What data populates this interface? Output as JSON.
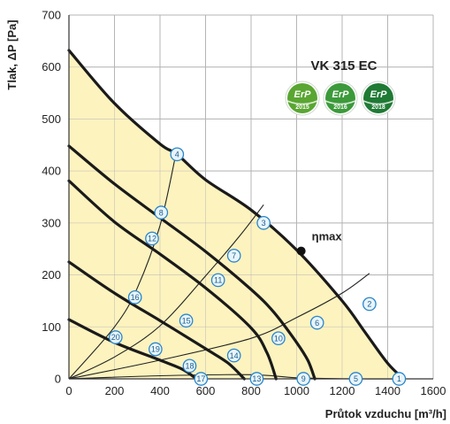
{
  "chart_data": {
    "type": "line",
    "title": "VK 315 EC",
    "xlabel": "Průtok vzduchu [m³/h]",
    "ylabel": "Tlak, ΔP [Pa]",
    "xlim": [
      0,
      1600
    ],
    "ylim": [
      0,
      700
    ],
    "xticks": [
      "0",
      "200",
      "400",
      "600",
      "800",
      "1000",
      "1200",
      "1400",
      "1600"
    ],
    "yticks": [
      "0",
      "100",
      "200",
      "300",
      "400",
      "500",
      "600",
      "700"
    ],
    "grid": true,
    "fill_color": "#fdf3bf",
    "curve_color": "#1a1a1a",
    "marker_edge_color": "#2a86c8",
    "marker_fill_color": "#e8f4fd",
    "erp_badges": [
      {
        "label": "ErP",
        "year": "2015",
        "color": "#5aa632"
      },
      {
        "label": "ErP",
        "year": "2016",
        "color": "#3c9a3a"
      },
      {
        "label": "ErP",
        "year": "2018",
        "color": "#1f7a34"
      }
    ],
    "eta_max": {
      "label": "ηmax",
      "x": 1020,
      "y": 246
    },
    "fan_curves": [
      {
        "points": [
          [
            0,
            632
          ],
          [
            200,
            530
          ],
          [
            400,
            452
          ],
          [
            475,
            432
          ],
          [
            600,
            383
          ],
          [
            800,
            325
          ],
          [
            1000,
            248
          ],
          [
            1200,
            150
          ],
          [
            1300,
            90
          ],
          [
            1400,
            30
          ],
          [
            1470,
            0
          ]
        ]
      },
      {
        "points": [
          [
            0,
            448
          ],
          [
            200,
            375
          ],
          [
            400,
            310
          ],
          [
            600,
            245
          ],
          [
            800,
            172
          ],
          [
            900,
            128
          ],
          [
            1000,
            70
          ],
          [
            1050,
            35
          ],
          [
            1080,
            0
          ]
        ]
      },
      {
        "points": [
          [
            0,
            381
          ],
          [
            200,
            302
          ],
          [
            400,
            240
          ],
          [
            600,
            175
          ],
          [
            800,
            98
          ],
          [
            870,
            50
          ],
          [
            910,
            0
          ]
        ]
      },
      {
        "points": [
          [
            0,
            225
          ],
          [
            200,
            165
          ],
          [
            400,
            112
          ],
          [
            600,
            58
          ],
          [
            700,
            30
          ],
          [
            770,
            0
          ]
        ]
      },
      {
        "points": [
          [
            0,
            114
          ],
          [
            200,
            70
          ],
          [
            400,
            36
          ],
          [
            500,
            18
          ],
          [
            560,
            0
          ]
        ]
      }
    ],
    "system_curves": [
      {
        "points": [
          [
            0,
            0
          ],
          [
            200,
            100
          ],
          [
            300,
            175
          ],
          [
            400,
            295
          ],
          [
            470,
            433
          ]
        ]
      },
      {
        "points": [
          [
            0,
            0
          ],
          [
            200,
            42
          ],
          [
            400,
            102
          ],
          [
            600,
            198
          ],
          [
            750,
            275
          ],
          [
            855,
            335
          ]
        ]
      },
      {
        "points": [
          [
            0,
            0
          ],
          [
            400,
            36
          ],
          [
            800,
            78
          ],
          [
            1000,
            118
          ],
          [
            1200,
            165
          ],
          [
            1320,
            203
          ]
        ]
      },
      {
        "points": [
          [
            0,
            0
          ],
          [
            400,
            6
          ],
          [
            800,
            8
          ],
          [
            1000,
            2
          ],
          [
            1260,
            0
          ],
          [
            1450,
            0
          ]
        ]
      }
    ],
    "markers": [
      {
        "id": "1",
        "x": 1450,
        "y": 0
      },
      {
        "id": "2",
        "x": 1320,
        "y": 144
      },
      {
        "id": "3",
        "x": 855,
        "y": 300
      },
      {
        "id": "4",
        "x": 475,
        "y": 432
      },
      {
        "id": "5",
        "x": 1260,
        "y": 0
      },
      {
        "id": "6",
        "x": 1090,
        "y": 108
      },
      {
        "id": "7",
        "x": 725,
        "y": 237
      },
      {
        "id": "8",
        "x": 405,
        "y": 320
      },
      {
        "id": "9",
        "x": 1030,
        "y": 0
      },
      {
        "id": "10",
        "x": 920,
        "y": 78
      },
      {
        "id": "11",
        "x": 655,
        "y": 190
      },
      {
        "id": "12",
        "x": 365,
        "y": 270
      },
      {
        "id": "13",
        "x": 825,
        "y": 0
      },
      {
        "id": "14",
        "x": 725,
        "y": 45
      },
      {
        "id": "15",
        "x": 515,
        "y": 112
      },
      {
        "id": "16",
        "x": 290,
        "y": 157
      },
      {
        "id": "17",
        "x": 580,
        "y": 0
      },
      {
        "id": "18",
        "x": 530,
        "y": 25
      },
      {
        "id": "19",
        "x": 380,
        "y": 57
      },
      {
        "id": "20",
        "x": 205,
        "y": 80
      }
    ]
  }
}
